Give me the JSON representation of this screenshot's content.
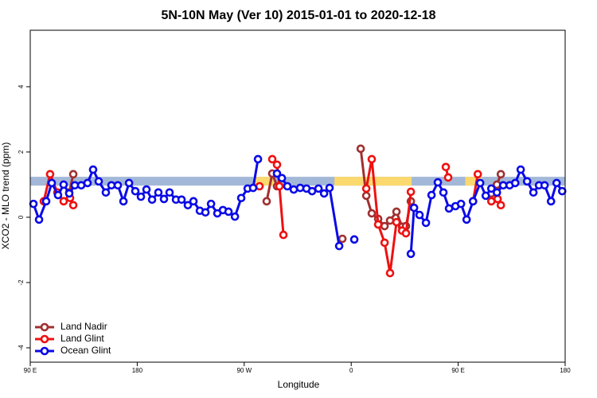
{
  "chart_data": {
    "type": "line",
    "title": "5N-10N May (Ver 10)   2015-01-01 to 2020-12-18",
    "x_label": "Longitude",
    "y_label": "XCO2 - MLO trend (ppm)",
    "xlim": [
      90,
      540
    ],
    "ylim": [
      -4.44,
      5.73
    ],
    "xticks": [
      {
        "value": 90,
        "label": "90 E"
      },
      {
        "value": 180,
        "label": "180"
      },
      {
        "value": 270,
        "label": "90 W"
      },
      {
        "value": 360,
        "label": "0"
      },
      {
        "value": 450,
        "label": "90 E"
      },
      {
        "value": 540,
        "label": "180"
      }
    ],
    "yticks": [
      -4,
      -2,
      0,
      2,
      4
    ],
    "legend": "bottomleft",
    "band": {
      "ylim": [
        0.97,
        1.24
      ],
      "color": "#a3b8d8",
      "highlight_color": "#fcd96e",
      "highlights": [
        [
          277.5,
          295.6
        ],
        [
          345.9,
          410.8
        ],
        [
          456,
          470
        ]
      ]
    },
    "series": [
      {
        "name": "Land Nadir",
        "color": "#a03030",
        "x": [
          122.8,
          126.2,
          null,
          288.9,
          293.6,
          297.6,
          null,
          352.6,
          null,
          368.0,
          372.7,
          377.3,
          382.7,
          388.1,
          392.7,
          398.1,
          402.8,
          406.1,
          410.2,
          null,
          477.9,
          482.6,
          485.9
        ],
        "values": [
          0.76,
          1.32,
          null,
          0.49,
          1.34,
          0.95,
          null,
          -0.66,
          null,
          2.1,
          0.66,
          0.12,
          -0.05,
          -0.27,
          -0.1,
          0.17,
          -0.29,
          -0.27,
          0.49,
          null,
          0.73,
          1.0,
          1.32
        ]
      },
      {
        "name": "Land Glint",
        "color": "#ee1111",
        "x": [
          101.4,
          106.7,
          112.8,
          118.1,
          123.5,
          126.2,
          null,
          282.9,
          null,
          293.6,
          297.6,
          299.6,
          303.0,
          null,
          372.7,
          377.3,
          382.7,
          388.1,
          392.7,
          398.1,
          402.8,
          406.1,
          410.2,
          null,
          439.6,
          441.6,
          null,
          462.5,
          466.5,
          null,
          477.9,
          483.2,
          485.9
        ],
        "values": [
          0.49,
          1.32,
          0.76,
          0.49,
          0.59,
          0.37,
          null,
          0.95,
          null,
          1.78,
          1.61,
          0.95,
          -0.54,
          null,
          0.88,
          1.78,
          -0.22,
          -0.78,
          -1.71,
          -0.15,
          -0.41,
          -0.49,
          0.78,
          null,
          1.54,
          1.22,
          null,
          0.49,
          1.32,
          null,
          0.49,
          0.56,
          0.37
        ]
      },
      {
        "name": "Ocean Glint",
        "color": "#0a0ae6",
        "x": [
          92.7,
          97.4,
          103.4,
          108.1,
          113.4,
          118.1,
          122.8,
          127.5,
          132.9,
          138.2,
          142.9,
          147.6,
          153.6,
          158.3,
          163.7,
          168.4,
          173.1,
          178.4,
          183.1,
          187.8,
          192.5,
          197.8,
          202.5,
          207.2,
          212.6,
          217.3,
          222.6,
          227.3,
          232.7,
          237.4,
          242.1,
          247.4,
          252.1,
          256.8,
          262.2,
          267.5,
          272.9,
          277.5,
          281.6,
          null,
          297.6,
          301.7,
          306.3,
          311.7,
          317.1,
          322.4,
          327.1,
          332.5,
          337.2,
          341.8,
          349.9,
          null,
          362.6,
          null,
          410.2,
          412.9,
          417.5,
          422.9,
          427.6,
          432.9,
          437.6,
          442.3,
          447.7,
          452.4,
          457.1,
          462.5,
          468.5,
          473.2,
          477.9,
          482.6,
          487.9,
          493.3,
          498.0,
          502.6,
          508.0,
          513.3,
          518.0,
          522.7,
          528.1,
          532.8,
          537.5
        ],
        "values": [
          0.41,
          -0.07,
          0.49,
          1.05,
          0.68,
          1.0,
          0.73,
          0.98,
          0.98,
          1.05,
          1.46,
          1.1,
          0.76,
          0.98,
          0.98,
          0.49,
          1.05,
          0.8,
          0.63,
          0.85,
          0.54,
          0.76,
          0.56,
          0.76,
          0.54,
          0.54,
          0.37,
          0.49,
          0.2,
          0.15,
          0.41,
          0.12,
          0.22,
          0.17,
          0.02,
          0.59,
          0.88,
          0.9,
          1.78,
          null,
          1.34,
          1.2,
          0.95,
          0.85,
          0.9,
          0.88,
          0.8,
          0.88,
          0.73,
          0.9,
          -0.88,
          null,
          -0.68,
          null,
          -1.12,
          0.29,
          0.07,
          -0.17,
          0.68,
          1.07,
          0.76,
          0.27,
          0.34,
          0.41,
          -0.07,
          0.49,
          1.05,
          0.66,
          0.88,
          0.76,
          0.98,
          0.98,
          1.05,
          1.46,
          1.1,
          0.76,
          0.98,
          0.98,
          0.49,
          1.05,
          0.8
        ]
      }
    ]
  }
}
